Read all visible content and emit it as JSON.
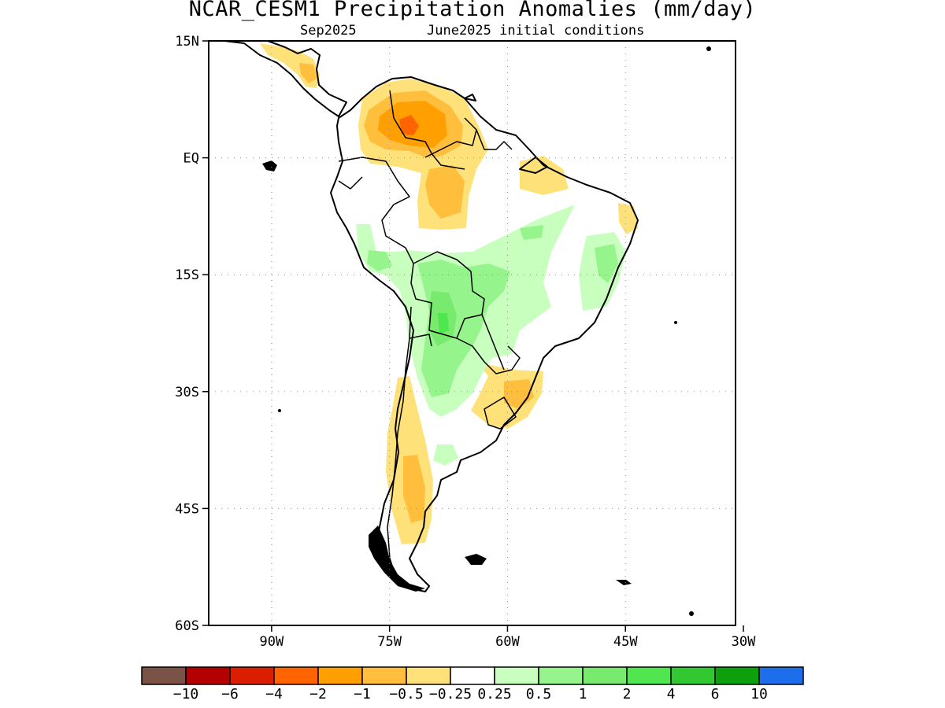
{
  "title": "NCAR_CESM1 Precipitation Anomalies (mm/day)",
  "subtitle_left": "Sep2025",
  "subtitle_right": "June2025 initial conditions",
  "map": {
    "lat_range": [
      -60,
      15
    ],
    "lon_range": [
      -98,
      -31
    ],
    "lat_ticks": [
      {
        "value": 15,
        "label": "15N"
      },
      {
        "value": 0,
        "label": "EQ"
      },
      {
        "value": -15,
        "label": "15S"
      },
      {
        "value": -30,
        "label": "30S"
      },
      {
        "value": -45,
        "label": "45S"
      },
      {
        "value": -60,
        "label": "60S"
      }
    ],
    "lon_ticks": [
      {
        "value": -90,
        "label": "90W"
      },
      {
        "value": -75,
        "label": "75W"
      },
      {
        "value": -60,
        "label": "60W"
      },
      {
        "value": -45,
        "label": "45W"
      },
      {
        "value": -30,
        "label": "30W"
      }
    ],
    "grid": "dotted"
  },
  "colorbar": {
    "colors": [
      "#7a5246",
      "#b40000",
      "#dc1e00",
      "#ff6400",
      "#ff9f00",
      "#ffbe3c",
      "#ffe17a",
      "#ffffff",
      "#c8ffbe",
      "#96f48c",
      "#78eb6e",
      "#50e650",
      "#32c832",
      "#0ca00c",
      "#1e6eeb"
    ],
    "labels": [
      "-10",
      "-6",
      "-4",
      "-2",
      "-1",
      "-0.5",
      "-0.25",
      "0.25",
      "0.5",
      "1",
      "2",
      "4",
      "6",
      "10"
    ]
  }
}
